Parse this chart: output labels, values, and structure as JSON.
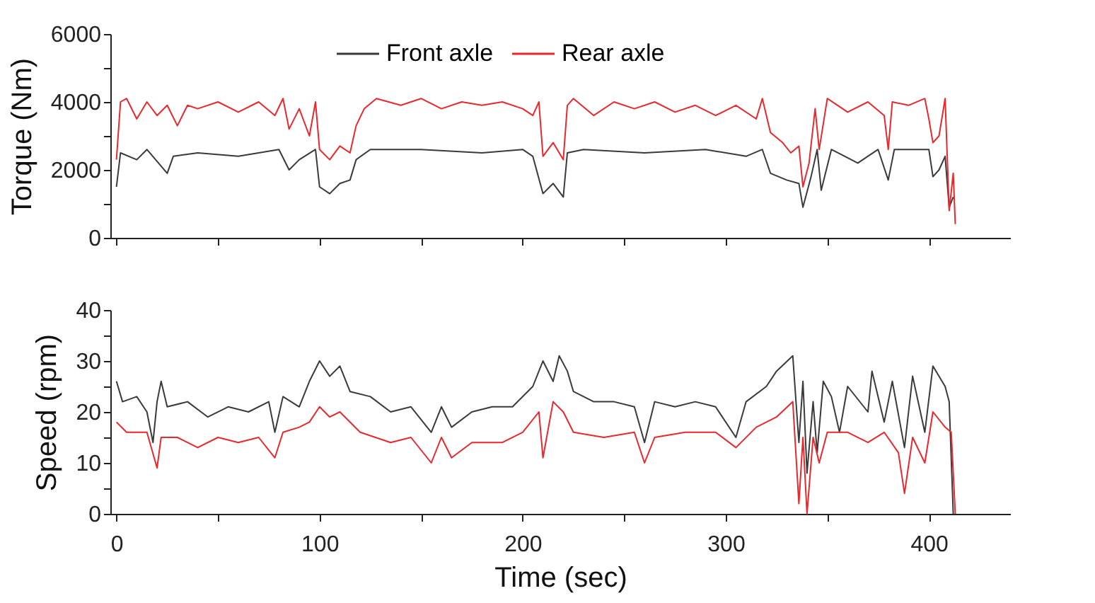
{
  "chart_data": [
    {
      "type": "line",
      "ylabel": "Torque (Nm)",
      "legend": "top",
      "tick_labels": "y",
      "grid": false,
      "xlim": [
        -3,
        440
      ],
      "xticks": [
        0,
        {
          "value": 50,
          "label": null
        },
        100,
        {
          "value": 150,
          "label": null
        },
        200,
        {
          "value": 250,
          "label": null
        },
        300,
        {
          "value": 350,
          "label": null
        },
        400
      ],
      "ylim": [
        0,
        6000
      ],
      "yticks": [
        0,
        {
          "value": 1000,
          "label": null
        },
        2000,
        {
          "value": 3000,
          "label": null
        },
        4000,
        {
          "value": 5000,
          "label": null
        },
        6000
      ],
      "series": [
        {
          "name": "Front axle",
          "color": "#3a3a3a",
          "x": [
            0,
            2,
            10,
            15,
            25,
            28,
            40,
            60,
            80,
            85,
            90,
            98,
            100,
            105,
            110,
            115,
            118,
            125,
            150,
            180,
            200,
            205,
            210,
            215,
            220,
            222,
            230,
            260,
            290,
            310,
            318,
            322,
            330,
            336,
            338,
            342,
            345,
            347,
            352,
            365,
            375,
            380,
            383,
            395,
            400,
            402,
            405,
            408,
            410,
            412
          ],
          "values": [
            1500,
            2500,
            2300,
            2600,
            1900,
            2400,
            2500,
            2400,
            2600,
            2000,
            2300,
            2600,
            1500,
            1300,
            1600,
            1700,
            2300,
            2600,
            2600,
            2500,
            2600,
            2400,
            1300,
            1600,
            1200,
            2500,
            2600,
            2500,
            2600,
            2400,
            2600,
            1900,
            1700,
            1600,
            900,
            1800,
            2600,
            1400,
            2600,
            2200,
            2600,
            1700,
            2600,
            2600,
            2600,
            1800,
            2000,
            2400,
            900,
            1200
          ]
        },
        {
          "name": "Rear axle",
          "color": "#e8282c",
          "x": [
            0,
            2,
            5,
            10,
            15,
            20,
            25,
            30,
            35,
            40,
            50,
            60,
            70,
            78,
            82,
            85,
            90,
            95,
            98,
            100,
            105,
            110,
            115,
            118,
            122,
            128,
            140,
            150,
            160,
            170,
            180,
            190,
            200,
            205,
            208,
            210,
            215,
            220,
            222,
            225,
            235,
            245,
            255,
            265,
            275,
            285,
            295,
            305,
            315,
            318,
            322,
            328,
            332,
            336,
            338,
            341,
            344,
            346,
            350,
            360,
            370,
            378,
            380,
            382,
            390,
            398,
            400,
            402,
            405,
            408,
            410,
            412,
            413
          ],
          "values": [
            2300,
            4000,
            4100,
            3500,
            4000,
            3600,
            3900,
            3300,
            3900,
            3800,
            4000,
            3700,
            4000,
            3600,
            4100,
            3200,
            3800,
            3000,
            4000,
            2600,
            2300,
            2700,
            2500,
            3300,
            3800,
            4100,
            3900,
            4100,
            3800,
            4000,
            3900,
            4000,
            3800,
            3600,
            4000,
            2400,
            2800,
            2300,
            3900,
            4100,
            3600,
            4000,
            3800,
            4000,
            3700,
            3900,
            3600,
            3900,
            3500,
            4100,
            3100,
            2800,
            2500,
            2700,
            1500,
            2200,
            3800,
            2600,
            4100,
            3700,
            4000,
            3600,
            2600,
            4000,
            3900,
            4100,
            3500,
            2800,
            3000,
            4100,
            800,
            1900,
            400
          ]
        }
      ]
    },
    {
      "type": "line",
      "xlabel": "Time (sec)",
      "ylabel": "Speed (rpm)",
      "legend": "top",
      "grid": false,
      "xlim": [
        -3,
        440
      ],
      "xticks": [
        0,
        {
          "value": 50,
          "label": null
        },
        100,
        {
          "value": 150,
          "label": null
        },
        200,
        {
          "value": 250,
          "label": null
        },
        300,
        {
          "value": 350,
          "label": null
        },
        400
      ],
      "ylim": [
        0,
        40
      ],
      "yticks": [
        0,
        {
          "value": 5,
          "label": null
        },
        10,
        {
          "value": 15,
          "label": null
        },
        20,
        {
          "value": 25,
          "label": null
        },
        30,
        {
          "value": 35,
          "label": null
        },
        40
      ],
      "series": [
        {
          "name": "Front axle",
          "color": "#3a3a3a",
          "x": [
            0,
            3,
            10,
            15,
            18,
            20,
            22,
            25,
            35,
            45,
            55,
            65,
            75,
            78,
            82,
            90,
            95,
            100,
            105,
            110,
            115,
            125,
            135,
            145,
            155,
            160,
            165,
            175,
            185,
            195,
            205,
            210,
            215,
            218,
            222,
            225,
            235,
            245,
            255,
            260,
            265,
            275,
            285,
            295,
            305,
            310,
            320,
            325,
            333,
            336,
            338,
            340,
            343,
            345,
            348,
            352,
            356,
            360,
            370,
            372,
            378,
            382,
            388,
            392,
            398,
            402,
            408,
            410,
            412
          ],
          "values": [
            26,
            22,
            23,
            20,
            14,
            22,
            26,
            21,
            22,
            19,
            21,
            20,
            22,
            16,
            23,
            21,
            26,
            30,
            27,
            29,
            24,
            23,
            20,
            21,
            16,
            21,
            17,
            20,
            21,
            21,
            25,
            30,
            26,
            31,
            28,
            24,
            22,
            22,
            21,
            14,
            22,
            21,
            22,
            21,
            15,
            22,
            25,
            28,
            31,
            14,
            26,
            8,
            22,
            12,
            26,
            23,
            16,
            25,
            20,
            28,
            18,
            26,
            13,
            27,
            16,
            29,
            25,
            22,
            0
          ]
        },
        {
          "name": "Rear axle",
          "color": "#e8282c",
          "x": [
            0,
            5,
            15,
            20,
            22,
            30,
            40,
            50,
            60,
            70,
            78,
            82,
            90,
            95,
            100,
            105,
            110,
            120,
            135,
            145,
            155,
            160,
            165,
            175,
            190,
            200,
            208,
            210,
            215,
            220,
            225,
            240,
            255,
            260,
            265,
            280,
            295,
            305,
            315,
            325,
            333,
            336,
            338,
            340,
            343,
            346,
            350,
            360,
            370,
            378,
            385,
            388,
            392,
            398,
            402,
            408,
            411,
            413
          ],
          "values": [
            18,
            16,
            16,
            9,
            15,
            15,
            13,
            15,
            14,
            15,
            11,
            16,
            17,
            18,
            21,
            19,
            20,
            16,
            14,
            15,
            10,
            15,
            11,
            14,
            14,
            16,
            20,
            11,
            22,
            20,
            16,
            15,
            16,
            10,
            15,
            16,
            16,
            13,
            17,
            19,
            22,
            2,
            15,
            0,
            15,
            10,
            16,
            16,
            14,
            16,
            12,
            4,
            15,
            10,
            20,
            17,
            16,
            0
          ]
        }
      ]
    }
  ]
}
